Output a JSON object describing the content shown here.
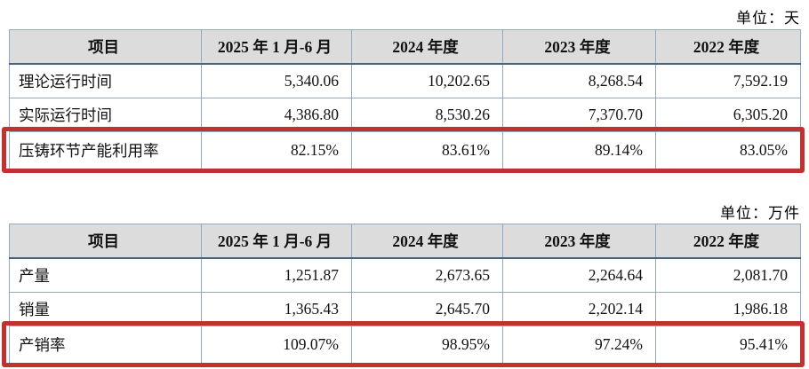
{
  "colors": {
    "header_bg": "#dcdcdc",
    "border_light": "#93a9bd",
    "border_mid": "#6d8aa3",
    "border_dark": "#44647e",
    "highlight": "#c0322f",
    "text": "#111111",
    "page_bg": "#ffffff"
  },
  "tables": [
    {
      "unit_label": "单位：天",
      "columns": [
        "项目",
        "2025 年 1 月-6 月",
        "2024 年度",
        "2023 年度",
        "2022 年度"
      ],
      "rows": [
        {
          "label": "理论运行时间",
          "values": [
            "5,340.06",
            "10,202.65",
            "8,268.54",
            "7,592.19"
          ],
          "highlight": false
        },
        {
          "label": "实际运行时间",
          "values": [
            "4,386.80",
            "8,530.26",
            "7,370.70",
            "6,305.20"
          ],
          "highlight": false
        },
        {
          "label": "压铸环节产能利用率",
          "values": [
            "82.15%",
            "83.61%",
            "89.14%",
            "83.05%"
          ],
          "highlight": true
        }
      ]
    },
    {
      "unit_label": "单位：万件",
      "columns": [
        "项目",
        "2025 年 1 月-6 月",
        "2024 年度",
        "2023 年度",
        "2022 年度"
      ],
      "rows": [
        {
          "label": "产量",
          "values": [
            "1,251.87",
            "2,673.65",
            "2,264.64",
            "2,081.70"
          ],
          "highlight": false
        },
        {
          "label": "销量",
          "values": [
            "1,365.43",
            "2,645.70",
            "2,202.14",
            "1,986.18"
          ],
          "highlight": false
        },
        {
          "label": "产销率",
          "values": [
            "109.07%",
            "98.95%",
            "97.24%",
            "95.41%"
          ],
          "highlight": true
        }
      ]
    }
  ]
}
